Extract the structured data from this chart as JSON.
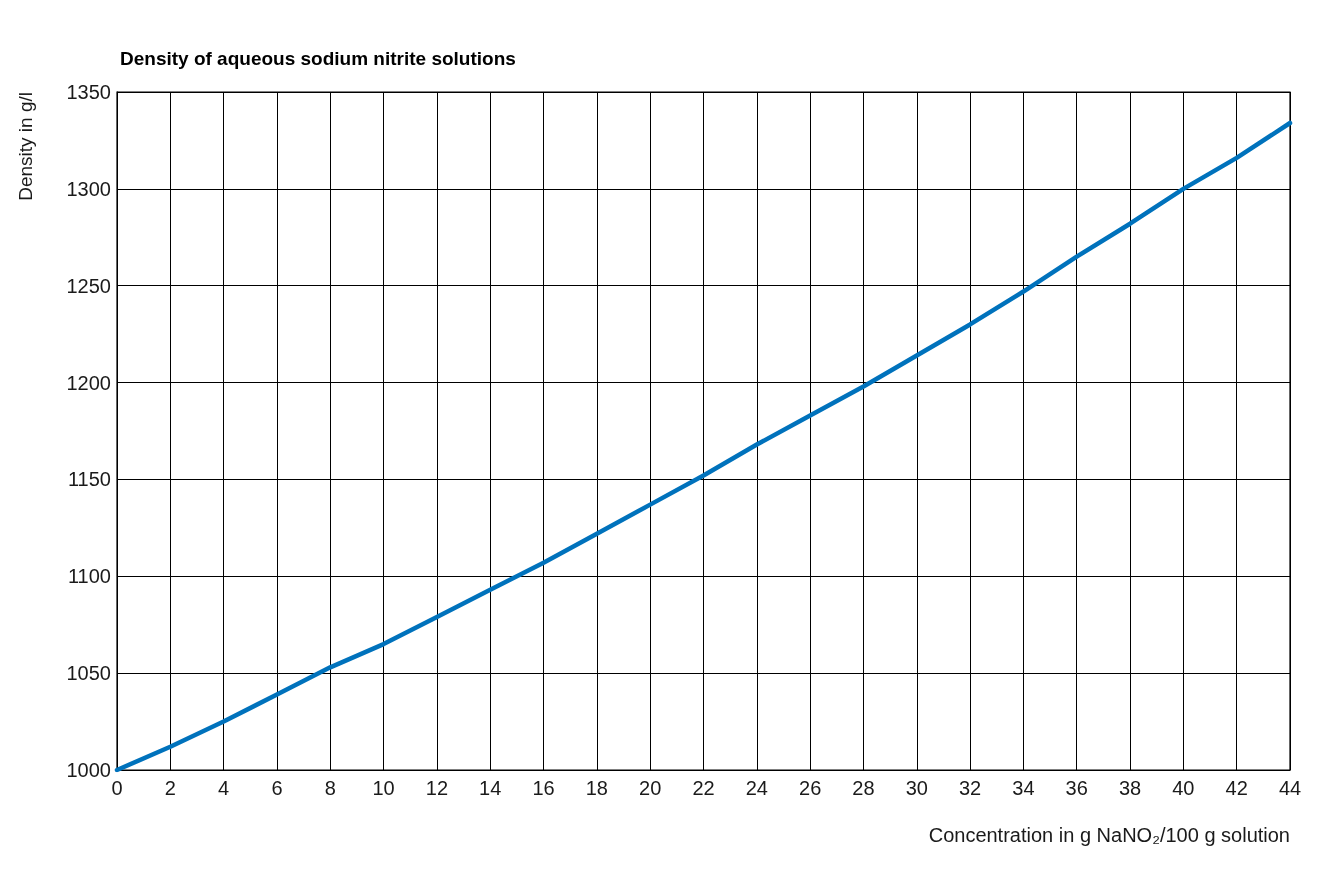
{
  "chart_data": {
    "type": "line",
    "title": "Density of aqueous sodium nitrite solutions",
    "xlabel": "Concentration in g NaNO₂/100 g solution",
    "ylabel": "Density in g/l",
    "x": [
      0,
      2,
      4,
      6,
      8,
      10,
      12,
      14,
      16,
      18,
      20,
      22,
      24,
      26,
      28,
      30,
      32,
      34,
      36,
      38,
      40,
      42,
      44
    ],
    "series": [
      {
        "color": "#0072bc",
        "values": [
          1000,
          1012,
          1025,
          1039,
          1053,
          1065,
          1079,
          1093,
          1107,
          1122,
          1137,
          1152,
          1168,
          1183,
          1198,
          1214,
          1230,
          1247,
          1265,
          1282,
          1300,
          1316,
          1334
        ]
      }
    ],
    "xlim": [
      0,
      44
    ],
    "xticks": [
      0,
      2,
      4,
      6,
      8,
      10,
      12,
      14,
      16,
      18,
      20,
      22,
      24,
      26,
      28,
      30,
      32,
      34,
      36,
      38,
      40,
      42,
      44
    ],
    "ylim": [
      1000,
      1350
    ],
    "yticks": [
      1000,
      1050,
      1100,
      1150,
      1200,
      1250,
      1300,
      1350
    ],
    "grid": true,
    "marker": "none",
    "line_style": "solid"
  }
}
